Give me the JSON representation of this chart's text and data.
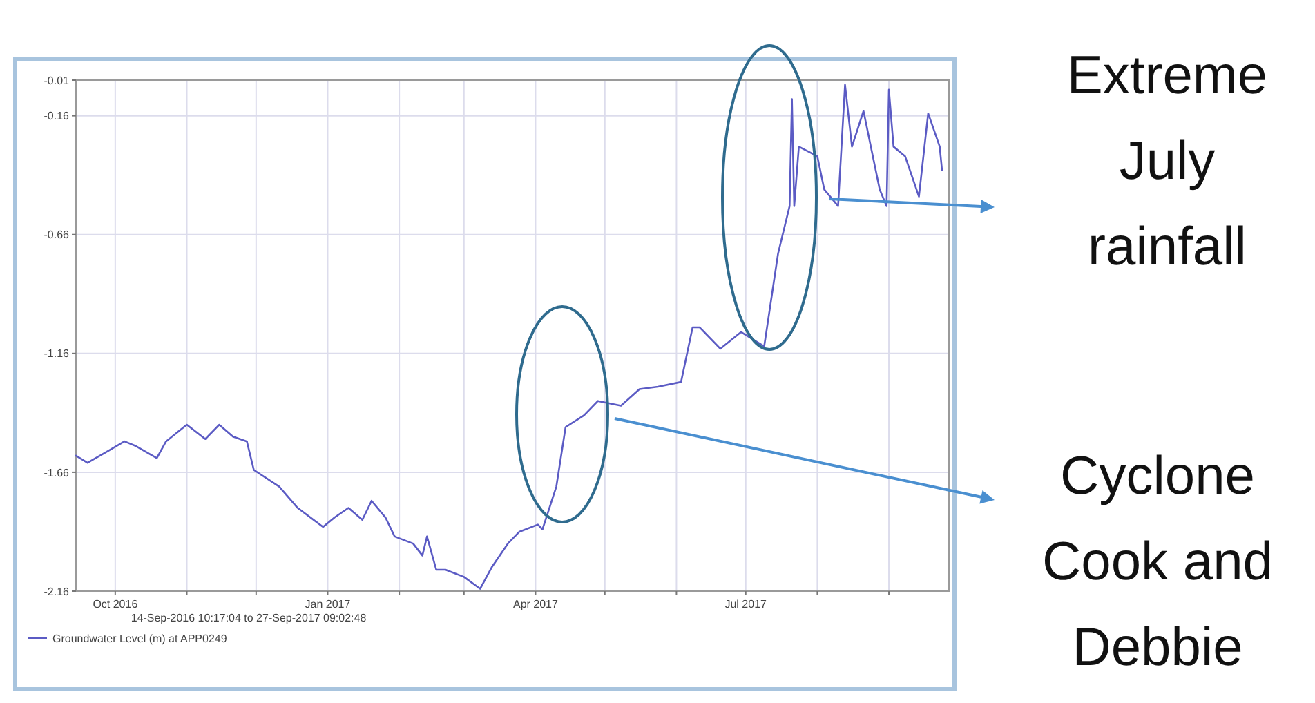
{
  "chart_data": {
    "type": "line",
    "xlabel": "14-Sep-2016 10:17:04 to 27-Sep-2017 09:02:48",
    "x": [
      "2016-09-14",
      "2016-09-19",
      "2016-09-28",
      "2016-10-05",
      "2016-10-10",
      "2016-10-19",
      "2016-10-23",
      "2016-11-01",
      "2016-11-09",
      "2016-11-15",
      "2016-11-21",
      "2016-11-27",
      "2016-11-30",
      "2016-12-11",
      "2016-12-19",
      "2016-12-30",
      "2017-01-04",
      "2017-01-10",
      "2017-01-16",
      "2017-01-20",
      "2017-01-26",
      "2017-01-30",
      "2017-02-07",
      "2017-02-11",
      "2017-02-13",
      "2017-02-17",
      "2017-02-21",
      "2017-03-01",
      "2017-03-08",
      "2017-03-13",
      "2017-03-20",
      "2017-03-25",
      "2017-04-02",
      "2017-04-04",
      "2017-04-10",
      "2017-04-14",
      "2017-04-22",
      "2017-04-28",
      "2017-05-08",
      "2017-05-16",
      "2017-05-24",
      "2017-06-03",
      "2017-06-08",
      "2017-06-11",
      "2017-06-20",
      "2017-06-29",
      "2017-07-09",
      "2017-07-15",
      "2017-07-20",
      "2017-07-21",
      "2017-07-22",
      "2017-07-24",
      "2017-08-01",
      "2017-08-04",
      "2017-08-10",
      "2017-08-13",
      "2017-08-16",
      "2017-08-21",
      "2017-08-28",
      "2017-08-31",
      "2017-09-01",
      "2017-09-03",
      "2017-09-08",
      "2017-09-14",
      "2017-09-18",
      "2017-09-23",
      "2017-09-24"
    ],
    "series": [
      {
        "name": "Groundwater Level (m) at APP0249",
        "color": "#5b5bc4",
        "values": [
          -1.59,
          -1.62,
          -1.57,
          -1.53,
          -1.55,
          -1.6,
          -1.53,
          -1.46,
          -1.52,
          -1.46,
          -1.51,
          -1.53,
          -1.65,
          -1.72,
          -1.81,
          -1.89,
          -1.85,
          -1.81,
          -1.86,
          -1.78,
          -1.85,
          -1.93,
          -1.96,
          -2.01,
          -1.93,
          -2.07,
          -2.07,
          -2.1,
          -2.15,
          -2.06,
          -1.96,
          -1.91,
          -1.88,
          -1.9,
          -1.72,
          -1.47,
          -1.42,
          -1.36,
          -1.38,
          -1.31,
          -1.3,
          -1.28,
          -1.05,
          -1.05,
          -1.14,
          -1.07,
          -1.13,
          -0.74,
          -0.54,
          -0.09,
          -0.54,
          -0.29,
          -0.33,
          -0.47,
          -0.54,
          -0.03,
          -0.29,
          -0.14,
          -0.47,
          -0.54,
          -0.05,
          -0.29,
          -0.33,
          -0.5,
          -0.15,
          -0.29,
          -0.39
        ]
      }
    ],
    "xlim": [
      "2016-09-14",
      "2017-09-27"
    ],
    "xticks": [
      {
        "value": "2016-10-01",
        "label": "Oct 2016"
      },
      {
        "value": "2016-11-01",
        "label": null
      },
      {
        "value": "2016-12-01",
        "label": null
      },
      {
        "value": "2017-01-01",
        "label": "Jan 2017"
      },
      {
        "value": "2017-02-01",
        "label": null
      },
      {
        "value": "2017-03-01",
        "label": null
      },
      {
        "value": "2017-04-01",
        "label": "Apr 2017"
      },
      {
        "value": "2017-05-01",
        "label": null
      },
      {
        "value": "2017-06-01",
        "label": null
      },
      {
        "value": "2017-07-01",
        "label": "Jul 2017"
      },
      {
        "value": "2017-08-01",
        "label": null
      },
      {
        "value": "2017-09-01",
        "label": null
      }
    ],
    "ylim": [
      -2.16,
      -0.01
    ],
    "yticks": [
      -0.01,
      -0.16,
      -0.66,
      -1.16,
      -1.66,
      -2.16
    ],
    "grid": true,
    "legend": "bottom",
    "marker": "none",
    "line_style": "solid",
    "annotations": [
      "Extreme July rainfall",
      "Cyclone Cook and Debbie"
    ]
  }
}
